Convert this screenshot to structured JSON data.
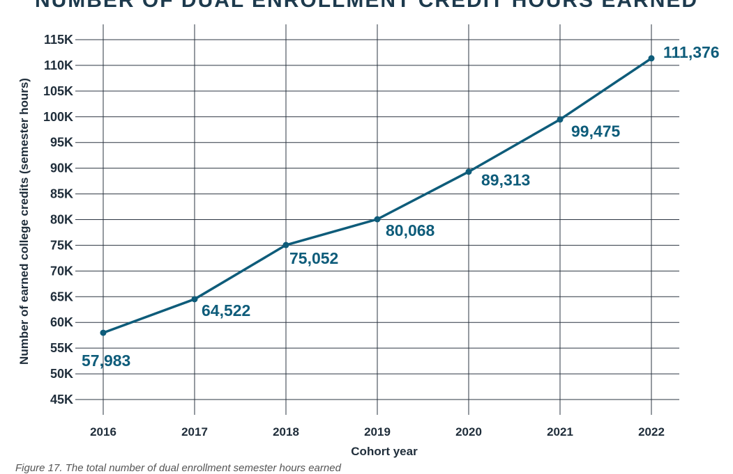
{
  "chart_data": {
    "type": "line",
    "title": "NUMBER OF DUAL ENROLLMENT CREDIT HOURS EARNED",
    "xlabel": "Cohort year",
    "ylabel": "Number of earned college credits (semester hours)",
    "categories": [
      "2016",
      "2017",
      "2018",
      "2019",
      "2020",
      "2021",
      "2022"
    ],
    "series": [
      {
        "values": [
          57983,
          64522,
          75052,
          80068,
          89313,
          99475,
          111376
        ],
        "labels": [
          "57,983",
          "64,522",
          "75,052",
          "80,068",
          "89,313",
          "99,475",
          "111,376"
        ]
      }
    ],
    "yticks": [
      45000,
      50000,
      55000,
      60000,
      65000,
      70000,
      75000,
      80000,
      85000,
      90000,
      95000,
      100000,
      105000,
      110000,
      115000
    ],
    "ytick_labels": [
      "45K",
      "50K",
      "55K",
      "60K",
      "65K",
      "70K",
      "75K",
      "80K",
      "85K",
      "90K",
      "95K",
      "100K",
      "105K",
      "110K",
      "115K"
    ],
    "ylim": [
      45000,
      115000
    ],
    "grid": true,
    "line_color": "#0e5c7a",
    "grid_color": "#2b3440"
  },
  "caption": "Figure 17. The total number of dual enrollment semester hours earned"
}
